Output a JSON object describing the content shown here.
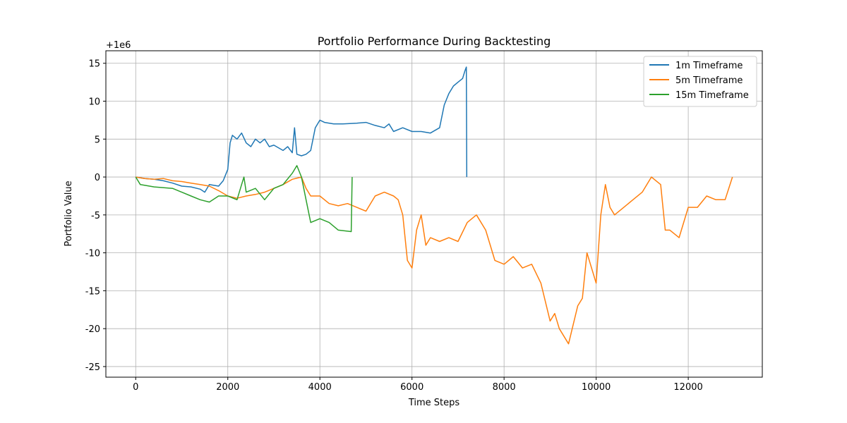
{
  "chart_data": {
    "type": "line",
    "title": "Portfolio Performance During Backtesting",
    "x_label": "Time Steps",
    "y_label": "Portfolio Value",
    "offset_text": "+1e6",
    "xlim": [
      -648,
      13608
    ],
    "ylim": [
      -26.4,
      16.65
    ],
    "xticks": [
      0,
      2000,
      4000,
      6000,
      8000,
      10000,
      12000
    ],
    "yticks": [
      -25,
      -20,
      -15,
      -10,
      -5,
      0,
      5,
      10,
      15
    ],
    "grid": true,
    "legend": "upper right",
    "series": [
      {
        "name": "1m Timeframe",
        "color": "#1f77b4",
        "x": [
          0,
          200,
          400,
          600,
          800,
          1000,
          1200,
          1400,
          1500,
          1600,
          1800,
          1900,
          2000,
          2050,
          2100,
          2200,
          2300,
          2400,
          2500,
          2600,
          2700,
          2800,
          2900,
          3000,
          3200,
          3300,
          3400,
          3450,
          3500,
          3600,
          3700,
          3800,
          3900,
          4000,
          4100,
          4300,
          4500,
          4800,
          5000,
          5200,
          5400,
          5500,
          5600,
          5800,
          6000,
          6200,
          6400,
          6600,
          6700,
          6800,
          6900,
          7000,
          7100,
          7150,
          7180,
          7190
        ],
        "values": [
          0,
          -0.2,
          -0.3,
          -0.5,
          -0.8,
          -1.2,
          -1.3,
          -1.6,
          -2.0,
          -1.0,
          -1.2,
          -0.5,
          1,
          4.5,
          5.5,
          5,
          5.8,
          4.5,
          4.0,
          5.0,
          4.5,
          5.0,
          4,
          4.2,
          3.5,
          4,
          3.2,
          6.5,
          3,
          2.8,
          3,
          3.5,
          6.5,
          7.5,
          7.2,
          7,
          7,
          7.1,
          7.2,
          6.8,
          6.5,
          7,
          6,
          6.5,
          6.0,
          6.0,
          5.8,
          6.5,
          9.5,
          11,
          12,
          12.5,
          13,
          14,
          14.5,
          0
        ]
      },
      {
        "name": "5m Timeframe",
        "color": "#ff7f0e",
        "x": [
          0,
          200,
          400,
          600,
          800,
          1000,
          1200,
          1400,
          1600,
          1800,
          2000,
          2200,
          2400,
          2600,
          2800,
          3000,
          3200,
          3400,
          3600,
          3700,
          3800,
          4000,
          4200,
          4400,
          4600,
          4800,
          5000,
          5200,
          5400,
          5600,
          5700,
          5800,
          5900,
          6000,
          6100,
          6200,
          6300,
          6400,
          6600,
          6800,
          7000,
          7200,
          7400,
          7600,
          7800,
          8000,
          8200,
          8400,
          8600,
          8800,
          9000,
          9100,
          9200,
          9400,
          9600,
          9700,
          9800,
          9900,
          10000,
          10100,
          10200,
          10300,
          10400,
          10600,
          10800,
          11000,
          11200,
          11400,
          11500,
          11600,
          11800,
          12000,
          12200,
          12400,
          12600,
          12800,
          12960
        ],
        "values": [
          0,
          -0.2,
          -0.3,
          -0.2,
          -0.5,
          -0.6,
          -0.8,
          -1.0,
          -1.2,
          -1.8,
          -2.5,
          -2.8,
          -2.5,
          -2.3,
          -2.0,
          -1.5,
          -1.0,
          -0.3,
          0,
          -1.5,
          -2.5,
          -2.5,
          -3.5,
          -3.8,
          -3.5,
          -4,
          -4.5,
          -2.5,
          -2,
          -2.5,
          -3,
          -5,
          -11,
          -12,
          -7,
          -5,
          -9,
          -8,
          -8.5,
          -8,
          -8.5,
          -6,
          -5,
          -7,
          -11,
          -11.5,
          -10.5,
          -12,
          -11.5,
          -14,
          -19,
          -18,
          -20,
          -22,
          -17,
          -16,
          -10,
          -12,
          -14,
          -5,
          -1,
          -4,
          -5,
          -4,
          -3,
          -2,
          0,
          -1,
          -7,
          -7,
          -8,
          -4,
          -4,
          -2.5,
          -3,
          -3,
          0
        ]
      },
      {
        "name": "15m Timeframe",
        "color": "#2ca02c",
        "x": [
          0,
          100,
          400,
          800,
          1000,
          1200,
          1400,
          1600,
          1800,
          2000,
          2200,
          2300,
          2350,
          2400,
          2600,
          2800,
          3000,
          3200,
          3400,
          3500,
          3600,
          3700,
          3800,
          4000,
          4200,
          4400,
          4680,
          4700
        ],
        "values": [
          0,
          -1.0,
          -1.3,
          -1.5,
          -2.0,
          -2.5,
          -3,
          -3.3,
          -2.5,
          -2.5,
          -3,
          -1,
          0,
          -2,
          -1.5,
          -3,
          -1.5,
          -1,
          0.5,
          1.5,
          0,
          -3,
          -6,
          -5.5,
          -6,
          -7,
          -7.2,
          0
        ]
      }
    ]
  }
}
